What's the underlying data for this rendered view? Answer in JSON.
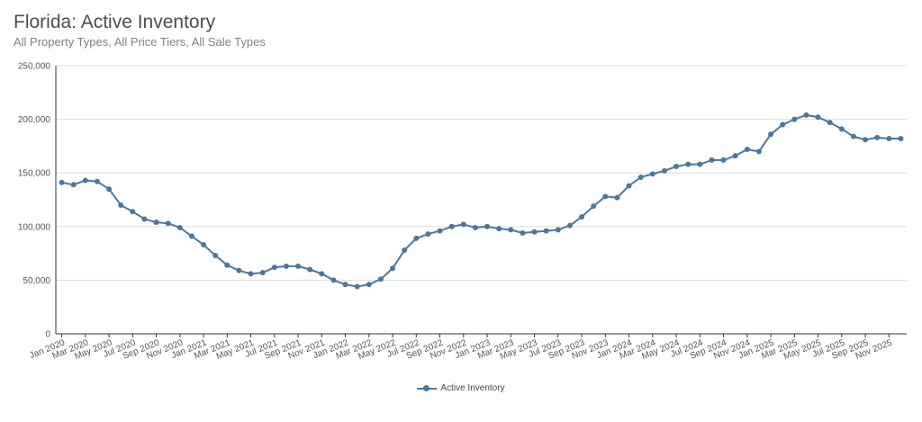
{
  "header": {
    "title": "Florida: Active Inventory",
    "subtitle": "All Property Types, All Price Tiers, All Sale Types"
  },
  "colors": {
    "series": "#4e7699",
    "grid": "#dedede",
    "axis": "#333333"
  },
  "chart_data": {
    "type": "line",
    "title": "Florida: Active Inventory",
    "subtitle": "All Property Types, All Price Tiers, All Sale Types",
    "xlabel": "",
    "ylabel": "",
    "ylim": [
      0,
      250000
    ],
    "yticks": [
      0,
      50000,
      100000,
      150000,
      200000,
      250000
    ],
    "ytick_labels": [
      "0",
      "50,000",
      "100,000",
      "150,000",
      "200,000",
      "250,000"
    ],
    "grid": true,
    "legend_position": "bottom",
    "x": [
      "Jan 2020",
      "Feb 2020",
      "Mar 2020",
      "Apr 2020",
      "May 2020",
      "Jun 2020",
      "Jul 2020",
      "Aug 2020",
      "Sep 2020",
      "Oct 2020",
      "Nov 2020",
      "Dec 2020",
      "Jan 2021",
      "Feb 2021",
      "Mar 2021",
      "Apr 2021",
      "May 2021",
      "Jun 2021",
      "Jul 2021",
      "Aug 2021",
      "Sep 2021",
      "Oct 2021",
      "Nov 2021",
      "Dec 2021",
      "Jan 2022",
      "Feb 2022",
      "Mar 2022",
      "Apr 2022",
      "May 2022",
      "Jun 2022",
      "Jul 2022",
      "Aug 2022",
      "Sep 2022",
      "Oct 2022",
      "Nov 2022",
      "Dec 2022",
      "Jan 2023",
      "Feb 2023",
      "Mar 2023",
      "Apr 2023",
      "May 2023",
      "Jun 2023",
      "Jul 2023",
      "Aug 2023",
      "Sep 2023",
      "Oct 2023",
      "Nov 2023",
      "Dec 2023",
      "Jan 2024",
      "Feb 2024",
      "Mar 2024",
      "Apr 2024",
      "May 2024",
      "Jun 2024",
      "Jul 2024",
      "Aug 2024",
      "Sep 2024",
      "Oct 2024",
      "Nov 2024",
      "Dec 2024",
      "Jan 2025",
      "Feb 2025",
      "Mar 2025",
      "Apr 2025",
      "May 2025",
      "Jun 2025",
      "Jul 2025",
      "Aug 2025",
      "Sep 2025",
      "Oct 2025",
      "Nov 2025",
      "Dec 2025"
    ],
    "xtick_labels": [
      "Jan 2020",
      "Mar 2020",
      "May 2020",
      "Jul 2020",
      "Sep 2020",
      "Nov 2020",
      "Jan 2021",
      "Mar 2021",
      "May 2021",
      "Jul 2021",
      "Sep 2021",
      "Nov 2021",
      "Jan 2022",
      "Mar 2022",
      "May 2022",
      "Jul 2022",
      "Sep 2022",
      "Nov 2022",
      "Jan 2023",
      "Mar 2023",
      "May 2023",
      "Jul 2023",
      "Sep 2023",
      "Nov 2023",
      "Jan 2024",
      "Mar 2024",
      "May 2024",
      "Jul 2024",
      "Sep 2024",
      "Nov 2024",
      "Jan 2025",
      "Mar 2025",
      "May 2025",
      "Jul 2025",
      "Sep 2025",
      "Nov 2025"
    ],
    "series": [
      {
        "name": "Active Inventory",
        "values": [
          141000,
          139000,
          143000,
          142000,
          135000,
          120000,
          114000,
          107000,
          104000,
          103000,
          99000,
          91000,
          83000,
          73000,
          64000,
          59000,
          56000,
          57000,
          62000,
          63000,
          63000,
          60000,
          56000,
          50000,
          46000,
          44000,
          46000,
          51000,
          61000,
          78000,
          89000,
          93000,
          96000,
          100000,
          102000,
          99000,
          100000,
          98000,
          97000,
          94000,
          95000,
          96000,
          97000,
          101000,
          109000,
          119000,
          128000,
          127000,
          138000,
          146000,
          149000,
          152000,
          156000,
          158000,
          158000,
          162000,
          162000,
          166000,
          172000,
          170000,
          186000,
          195000,
          200000,
          204000,
          202000,
          197000,
          191000,
          184000,
          181000,
          183000,
          182000,
          182000
        ]
      }
    ]
  }
}
